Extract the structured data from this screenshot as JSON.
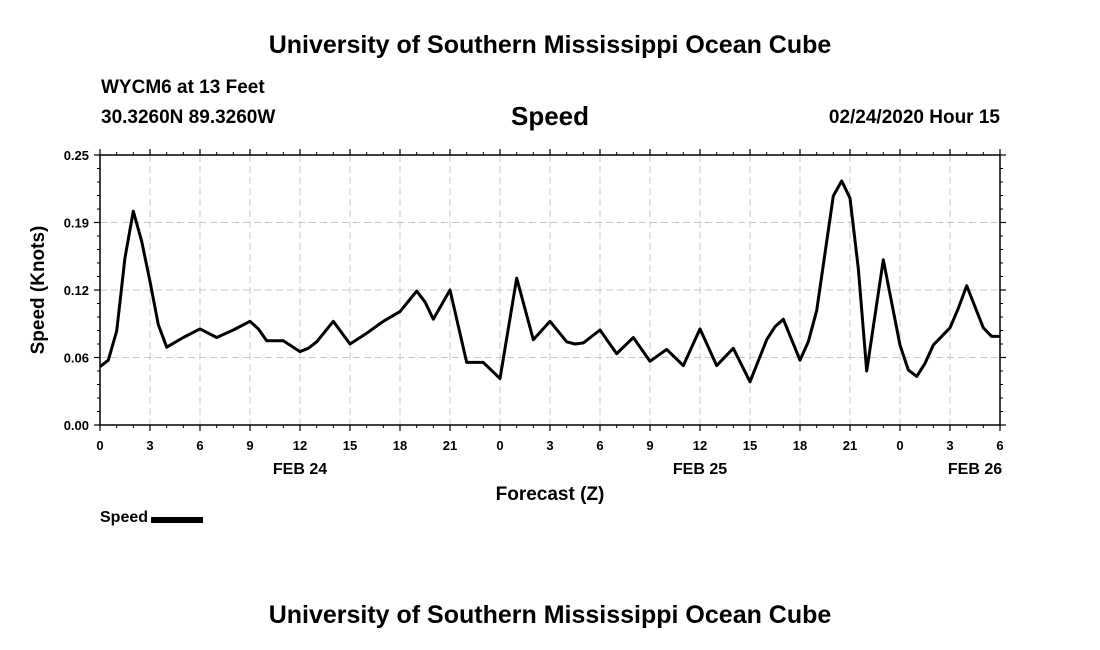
{
  "header": {
    "title": "University of Southern Mississippi Ocean Cube",
    "station": "WYCM6 at 13 Feet",
    "coordinates": "30.3260N 89.3260W",
    "datetime": "02/24/2020 Hour 15"
  },
  "footer": {
    "title": "University of Southern Mississippi Ocean Cube"
  },
  "chart_data": {
    "type": "line",
    "title": "Speed",
    "xlabel": "Forecast (Z)",
    "ylabel": "Speed (Knots)",
    "xlim": [
      0,
      54
    ],
    "ylim": [
      0,
      0.25
    ],
    "yticks": [
      "0.00",
      "0.06",
      "0.12",
      "0.19",
      "0.25"
    ],
    "ytick_values": [
      0,
      0.0625,
      0.125,
      0.1875,
      0.25
    ],
    "xticks": [
      {
        "hour": 0,
        "label": "0"
      },
      {
        "hour": 3,
        "label": "3"
      },
      {
        "hour": 6,
        "label": "6"
      },
      {
        "hour": 9,
        "label": "9"
      },
      {
        "hour": 12,
        "label": "12"
      },
      {
        "hour": 15,
        "label": "15"
      },
      {
        "hour": 18,
        "label": "18"
      },
      {
        "hour": 21,
        "label": "21"
      },
      {
        "hour": 24,
        "label": "0"
      },
      {
        "hour": 27,
        "label": "3"
      },
      {
        "hour": 30,
        "label": "6"
      },
      {
        "hour": 33,
        "label": "9"
      },
      {
        "hour": 36,
        "label": "12"
      },
      {
        "hour": 39,
        "label": "15"
      },
      {
        "hour": 42,
        "label": "18"
      },
      {
        "hour": 45,
        "label": "21"
      },
      {
        "hour": 48,
        "label": "0"
      },
      {
        "hour": 51,
        "label": "3"
      },
      {
        "hour": 54,
        "label": "6"
      }
    ],
    "day_labels": [
      {
        "hour": 12,
        "label": "FEB 24"
      },
      {
        "hour": 36,
        "label": "FEB 25"
      },
      {
        "hour": 52.5,
        "label": "FEB 26"
      }
    ],
    "grid": true,
    "legend_position": "bottom-left",
    "series": [
      {
        "name": "Speed",
        "color": "#000000",
        "x": [
          0,
          0.5,
          1,
          1.5,
          2,
          2.5,
          3,
          3.5,
          4,
          5,
          6,
          7,
          8,
          9,
          9.5,
          10,
          11,
          12,
          12.5,
          13,
          14,
          15,
          16,
          17,
          18,
          19,
          19.5,
          20,
          21,
          22,
          23,
          24,
          25,
          26,
          27,
          28,
          28.5,
          29,
          30,
          31,
          32,
          33,
          34,
          35,
          36,
          37,
          38,
          39,
          40,
          40.5,
          41,
          42,
          42.5,
          43,
          44,
          44.5,
          45,
          45.5,
          46,
          47,
          48,
          48.5,
          49,
          49.5,
          50,
          51,
          51.5,
          52,
          53,
          53.5,
          54
        ],
        "y": [
          0.054,
          0.06,
          0.087,
          0.155,
          0.198,
          0.17,
          0.133,
          0.093,
          0.072,
          0.081,
          0.089,
          0.081,
          0.088,
          0.096,
          0.089,
          0.078,
          0.078,
          0.068,
          0.071,
          0.077,
          0.096,
          0.075,
          0.085,
          0.096,
          0.105,
          0.124,
          0.114,
          0.098,
          0.125,
          0.058,
          0.058,
          0.043,
          0.136,
          0.079,
          0.096,
          0.077,
          0.075,
          0.076,
          0.088,
          0.066,
          0.081,
          0.059,
          0.07,
          0.055,
          0.089,
          0.055,
          0.071,
          0.04,
          0.079,
          0.091,
          0.098,
          0.06,
          0.077,
          0.106,
          0.212,
          0.226,
          0.21,
          0.145,
          0.05,
          0.153,
          0.074,
          0.051,
          0.045,
          0.057,
          0.074,
          0.09,
          0.108,
          0.129,
          0.09,
          0.082,
          0.082
        ]
      }
    ]
  }
}
